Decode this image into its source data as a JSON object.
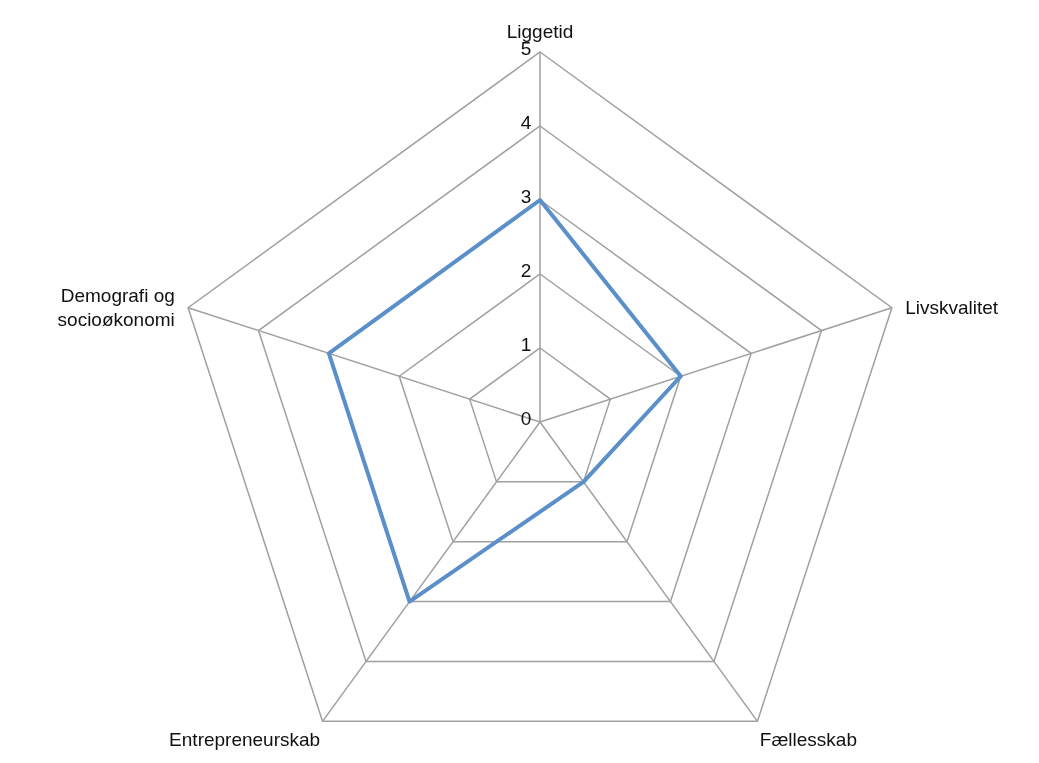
{
  "chart_data": {
    "type": "radar",
    "categories": [
      "Liggetid",
      "Livskvalitet",
      "Fællesskab",
      "Entrepreneurskab",
      "Demografi og socioøkonomi"
    ],
    "series": [
      {
        "color": "#5b8fc9",
        "values": [
          3,
          2,
          1,
          3,
          3
        ]
      }
    ],
    "ylim": [
      0,
      5
    ],
    "yticks": [
      0,
      1,
      2,
      3,
      4,
      5
    ],
    "grid": true,
    "marker": "none",
    "line_style": "solid"
  }
}
